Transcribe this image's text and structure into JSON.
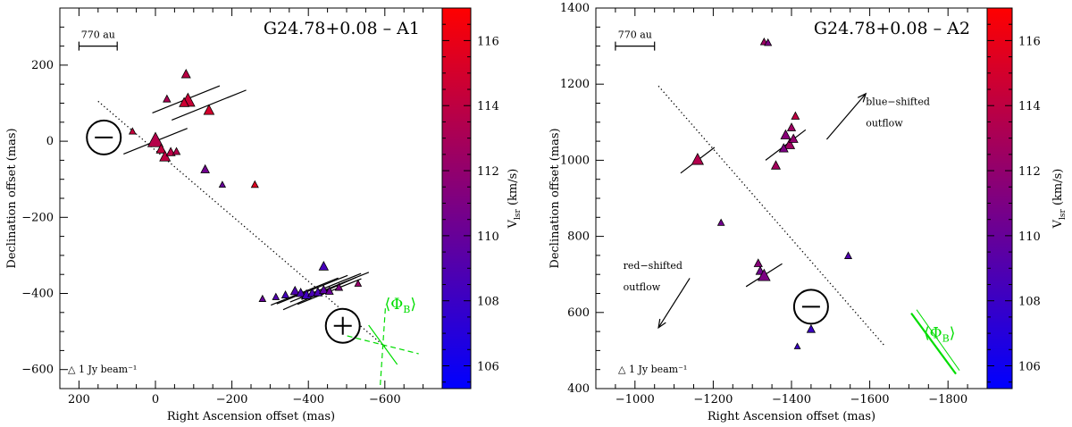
{
  "chart_data": [
    {
      "type": "scatter",
      "title": "G24.78+0.08 – A1",
      "xlabel": "Right Ascension offset (mas)",
      "ylabel": "Declination offset (mas)",
      "xlim": [
        250,
        -750
      ],
      "ylim": [
        -650,
        350
      ],
      "x_ticks": [
        200,
        0,
        -200,
        -400,
        -600
      ],
      "y_ticks": [
        200,
        0,
        -200,
        -400,
        -600
      ],
      "x_tick_labels": [
        "200",
        "0",
        "−200",
        "−400",
        "−600"
      ],
      "y_tick_labels": [
        "200",
        "0",
        "−200",
        "−400",
        "−600"
      ],
      "scale_bar": {
        "label": "770 au",
        "x_from": 200,
        "x_to": 100,
        "y": 250
      },
      "beam_label": "△ 1 Jy beam⁻¹",
      "colorbar": {
        "label": "V",
        "label_sub": "lsr",
        "label_unit": " (km/s)",
        "range": [
          105.3,
          117.0
        ],
        "ticks": [
          106,
          108,
          110,
          112,
          114,
          116
        ],
        "color_low": "#0000ff",
        "color_high": "#ff0000"
      },
      "points": [
        {
          "x": 0,
          "y": 0,
          "v": 113.6,
          "s": 3.0
        },
        {
          "x": -15,
          "y": -22,
          "v": 114.2,
          "s": 1.4
        },
        {
          "x": -25,
          "y": -42,
          "v": 114.0,
          "s": 1.7
        },
        {
          "x": -40,
          "y": -30,
          "v": 113.8,
          "s": 1.2
        },
        {
          "x": -55,
          "y": -28,
          "v": 113.5,
          "s": 0.8
        },
        {
          "x": 60,
          "y": 25,
          "v": 114.3,
          "s": 0.6
        },
        {
          "x": -85,
          "y": 105,
          "v": 114.5,
          "s": 2.6
        },
        {
          "x": -75,
          "y": 100,
          "v": 114.7,
          "s": 1.4
        },
        {
          "x": -80,
          "y": 175,
          "v": 113.9,
          "s": 1.2
        },
        {
          "x": -30,
          "y": 110,
          "v": 113.2,
          "s": 0.8
        },
        {
          "x": -140,
          "y": 80,
          "v": 115.0,
          "s": 1.6
        },
        {
          "x": -130,
          "y": -75,
          "v": 110.5,
          "s": 1.1
        },
        {
          "x": -175,
          "y": -115,
          "v": 110.0,
          "s": 0.5
        },
        {
          "x": -260,
          "y": -115,
          "v": 115.5,
          "s": 0.7
        },
        {
          "x": -440,
          "y": -330,
          "v": 108.5,
          "s": 1.3
        },
        {
          "x": -280,
          "y": -415,
          "v": 110.0,
          "s": 0.6
        },
        {
          "x": -315,
          "y": -410,
          "v": 109.0,
          "s": 0.6
        },
        {
          "x": -340,
          "y": -405,
          "v": 108.4,
          "s": 0.8
        },
        {
          "x": -365,
          "y": -395,
          "v": 108.9,
          "s": 1.2
        },
        {
          "x": -380,
          "y": -400,
          "v": 108.6,
          "s": 1.2
        },
        {
          "x": -395,
          "y": -405,
          "v": 108.2,
          "s": 1.4
        },
        {
          "x": -410,
          "y": -400,
          "v": 108.7,
          "s": 1.1
        },
        {
          "x": -425,
          "y": -398,
          "v": 108.8,
          "s": 1.2
        },
        {
          "x": -440,
          "y": -392,
          "v": 109.5,
          "s": 1.1
        },
        {
          "x": -455,
          "y": -395,
          "v": 110.2,
          "s": 0.9
        },
        {
          "x": -480,
          "y": -385,
          "v": 111.0,
          "s": 0.8
        },
        {
          "x": -530,
          "y": -375,
          "v": 112.2,
          "s": 0.6
        }
      ],
      "vectors": [
        {
          "x": -80,
          "y": 110,
          "len": 190,
          "ang": 22
        },
        {
          "x": -140,
          "y": 95,
          "len": 210,
          "ang": 22
        },
        {
          "x": 0,
          "y": 0,
          "len": 180,
          "ang": 22
        },
        {
          "x": -390,
          "y": -395,
          "len": 190,
          "ang": 22
        },
        {
          "x": -410,
          "y": -390,
          "len": 200,
          "ang": 22
        },
        {
          "x": -430,
          "y": -400,
          "len": 210,
          "ang": 24
        },
        {
          "x": -445,
          "y": -385,
          "len": 200,
          "ang": 22
        },
        {
          "x": -455,
          "y": -395,
          "len": 180,
          "ang": 22
        },
        {
          "x": -470,
          "y": -380,
          "len": 190,
          "ang": 22
        }
      ],
      "fit_line": {
        "x1": 150,
        "y1": 105,
        "x2": -600,
        "y2": -540
      },
      "sign_markers": [
        {
          "x": 135,
          "y": 10,
          "sign": "minus"
        },
        {
          "x": -490,
          "y": -485,
          "sign": "plus"
        }
      ],
      "phi_b": {
        "label": "⟨Φ",
        "sub": "B",
        "close": "⟩",
        "color": "#00dd00",
        "cx": -595,
        "cy": -535
      }
    },
    {
      "type": "scatter",
      "title": "G24.78+0.08 – A2",
      "xlabel": "Right Ascension offset (mas)",
      "ylabel": "Declination offset (mas)",
      "xlim": [
        -900,
        -1900
      ],
      "ylim": [
        400,
        1400
      ],
      "x_ticks": [
        -1000,
        -1200,
        -1400,
        -1600,
        -1800
      ],
      "y_ticks": [
        400,
        600,
        800,
        1000,
        1200,
        1400
      ],
      "x_tick_labels": [
        "−1000",
        "−1200",
        "−1400",
        "−1600",
        "−1800"
      ],
      "y_tick_labels": [
        "400",
        "600",
        "800",
        "1000",
        "1200",
        "1400"
      ],
      "scale_bar": {
        "label": "770 au",
        "x_from": -950,
        "x_to": -1050,
        "y": 1300
      },
      "beam_label": "△ 1 Jy beam⁻¹",
      "colorbar": {
        "label": "V",
        "label_sub": "lsr",
        "label_unit": " (km/s)",
        "range": [
          105.3,
          117.0
        ],
        "ticks": [
          106,
          108,
          110,
          112,
          114,
          116
        ],
        "color_low": "#0000ff",
        "color_high": "#ff0000"
      },
      "points": [
        {
          "x": -1160,
          "y": 1000,
          "v": 113.5,
          "s": 2.0
        },
        {
          "x": -1220,
          "y": 835,
          "v": 110.5,
          "s": 0.6
        },
        {
          "x": -1330,
          "y": 1310,
          "v": 112.5,
          "s": 0.7
        },
        {
          "x": -1340,
          "y": 1308,
          "v": 111.0,
          "s": 0.7
        },
        {
          "x": -1410,
          "y": 1115,
          "v": 114.0,
          "s": 0.9
        },
        {
          "x": -1400,
          "y": 1085,
          "v": 112.5,
          "s": 1.0
        },
        {
          "x": -1385,
          "y": 1065,
          "v": 111.5,
          "s": 1.4
        },
        {
          "x": -1395,
          "y": 1040,
          "v": 112.5,
          "s": 1.6
        },
        {
          "x": -1405,
          "y": 1055,
          "v": 112.0,
          "s": 1.2
        },
        {
          "x": -1380,
          "y": 1030,
          "v": 111.0,
          "s": 1.2
        },
        {
          "x": -1360,
          "y": 985,
          "v": 112.8,
          "s": 1.2
        },
        {
          "x": -1545,
          "y": 748,
          "v": 109.0,
          "s": 0.7
        },
        {
          "x": -1315,
          "y": 728,
          "v": 111.5,
          "s": 1.0
        },
        {
          "x": -1320,
          "y": 708,
          "v": 110.5,
          "s": 1.1
        },
        {
          "x": -1330,
          "y": 695,
          "v": 111.0,
          "s": 2.1
        },
        {
          "x": -1450,
          "y": 555,
          "v": 108.0,
          "s": 1.0
        },
        {
          "x": -1415,
          "y": 510,
          "v": 108.0,
          "s": 0.4
        }
      ],
      "vectors": [
        {
          "x": -1160,
          "y": 1000,
          "len": 110,
          "ang": 38
        },
        {
          "x": -1385,
          "y": 1040,
          "len": 130,
          "ang": 38
        },
        {
          "x": -1330,
          "y": 698,
          "len": 110,
          "ang": 33
        }
      ],
      "fit_line": {
        "x1": -1060,
        "y1": 1195,
        "x2": -1640,
        "y2": 510
      },
      "sign_markers": [
        {
          "x": -1450,
          "y": 615,
          "sign": "minus"
        }
      ],
      "outflows": [
        {
          "label_lines": [
            "blue−shifted",
            "outflow"
          ],
          "x_from": -1490,
          "y_from": 1055,
          "x_to": -1590,
          "y_to": 1175,
          "tx": -1590,
          "ty": 1145
        },
        {
          "label_lines": [
            "red−shifted",
            "outflow"
          ],
          "x_from": -1140,
          "y_from": 690,
          "x_to": -1060,
          "y_to": 560,
          "tx": -970,
          "ty": 715
        }
      ],
      "phi_b": {
        "label": "⟨Φ",
        "sub": "B",
        "close": "⟩",
        "color": "#00dd00",
        "cx": -1770,
        "cy": 490
      }
    }
  ]
}
